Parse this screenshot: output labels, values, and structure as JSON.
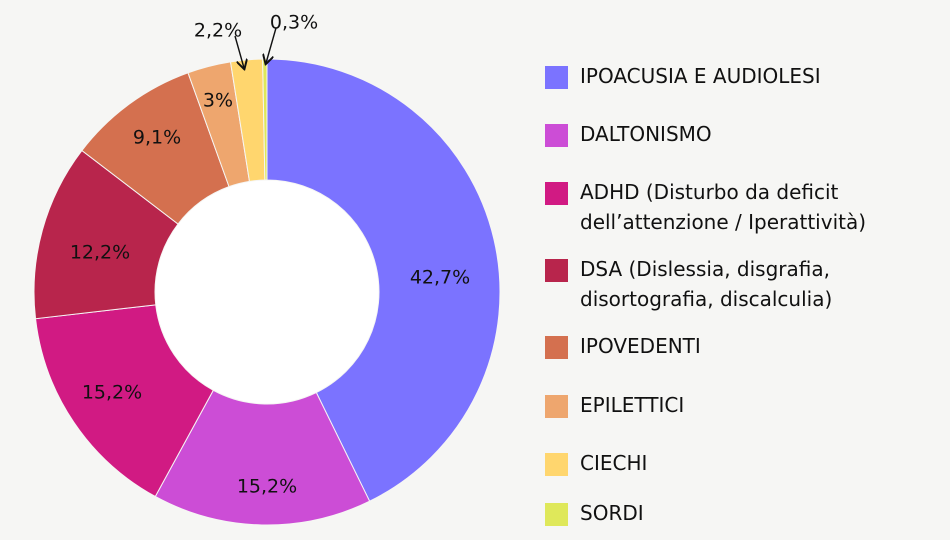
{
  "chart_data": {
    "type": "pie",
    "variant": "donut",
    "slices": [
      {
        "name": "IPOACUSIA E AUDIOLESI",
        "value": 42.7,
        "label": "42,7%",
        "color": "#7b73ff"
      },
      {
        "name": "DALTONISMO",
        "value": 15.2,
        "label": "15,2%",
        "color": "#cc4dd6"
      },
      {
        "name": "ADHD (Disturbo da deficit dell’attenzione / Iperattività)",
        "value": 15.2,
        "label": "15,2%",
        "color": "#d11a83"
      },
      {
        "name": "DSA (Dislessia, disgrafia, disortografia, discalculia)",
        "value": 12.2,
        "label": "12,2%",
        "color": "#b8254c"
      },
      {
        "name": "IPOVEDENTI",
        "value": 9.1,
        "label": "9,1%",
        "color": "#d4704f"
      },
      {
        "name": "EPILETTICI",
        "value": 3,
        "label": "3%",
        "color": "#eea66e"
      },
      {
        "name": "CIECHI",
        "value": 2.2,
        "label": "2,2%",
        "color": "#ffd66e"
      },
      {
        "name": "SORDI",
        "value": 0.3,
        "label": "0,3%",
        "color": "#dfe85a"
      }
    ],
    "legend_position": "right"
  },
  "legend": {
    "items": [
      {
        "label": "IPOACUSIA E AUDIOLESI",
        "color": "#7b73ff"
      },
      {
        "label": "DALTONISMO",
        "color": "#cc4dd6"
      },
      {
        "label": "ADHD (Disturbo da deficit dell’attenzione / Iperattività)",
        "color": "#d11a83"
      },
      {
        "label": "DSA (Dislessia, disgrafia, disortografia, discalculia)",
        "color": "#b8254c"
      },
      {
        "label": "IPOVEDENTI",
        "color": "#d4704f"
      },
      {
        "label": "EPILETTICI",
        "color": "#eea66e"
      },
      {
        "label": "CIECHI",
        "color": "#ffd66e"
      },
      {
        "label": "SORDI",
        "color": "#dfe85a"
      }
    ]
  }
}
